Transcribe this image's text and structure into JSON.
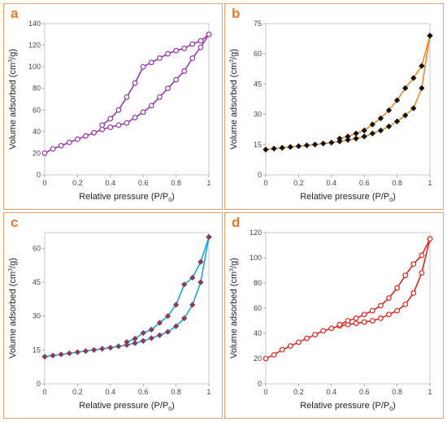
{
  "chart_data": [
    {
      "id": "a",
      "label": "a",
      "type": "line",
      "color": "#9a35b0",
      "marker": "circle",
      "marker_fill": "#ffffff",
      "xlabel": "Relative pressure (P/P0)",
      "ylabel": "Volume adsorbed (cm3/g)",
      "xlim": [
        0,
        1
      ],
      "ylim": [
        0,
        140
      ],
      "xticks": [
        "0",
        "0.2",
        "0.4",
        "0.6",
        "0.8",
        "1"
      ],
      "yticks": [
        "0",
        "20",
        "40",
        "60",
        "80",
        "100",
        "120",
        "140"
      ],
      "series": [
        {
          "x": [
            0.0,
            0.05,
            0.1,
            0.15,
            0.2,
            0.25,
            0.3,
            0.35,
            0.4,
            0.45,
            0.5,
            0.55,
            0.6,
            0.65,
            0.7,
            0.75,
            0.8,
            0.85,
            0.9,
            0.95,
            1.0
          ],
          "y": [
            20,
            24,
            27,
            30,
            33,
            36,
            39,
            42,
            44,
            46,
            48,
            53,
            58,
            64,
            72,
            80,
            88,
            96,
            108,
            118,
            130
          ]
        },
        {
          "x": [
            1.0,
            0.95,
            0.9,
            0.85,
            0.8,
            0.75,
            0.7,
            0.65,
            0.6,
            0.55,
            0.5,
            0.45,
            0.4,
            0.35
          ],
          "y": [
            130,
            124,
            121,
            117,
            115,
            112,
            108,
            104,
            100,
            85,
            72,
            60,
            52,
            46
          ]
        }
      ]
    },
    {
      "id": "b",
      "label": "b",
      "type": "line",
      "color": "#f08a24",
      "marker": "diamond",
      "marker_fill": "#111111",
      "xlabel": "Relative pressure (P/P0)",
      "ylabel": "Volume adsorbed (cm3/g)",
      "xlim": [
        0,
        1
      ],
      "ylim": [
        0,
        75
      ],
      "xticks": [
        "0",
        "0.2",
        "0.4",
        "0.6",
        "0.8",
        "1"
      ],
      "yticks": [
        "0",
        "15",
        "30",
        "45",
        "60",
        "75"
      ],
      "series": [
        {
          "x": [
            0.0,
            0.05,
            0.1,
            0.15,
            0.2,
            0.25,
            0.3,
            0.35,
            0.4,
            0.45,
            0.5,
            0.55,
            0.6,
            0.65,
            0.7,
            0.75,
            0.8,
            0.85,
            0.9,
            0.95,
            1.0
          ],
          "y": [
            12.5,
            13,
            13.4,
            13.8,
            14.2,
            14.6,
            15,
            15.5,
            16,
            16.6,
            17.3,
            18,
            19,
            20.5,
            22,
            24,
            26.5,
            29.5,
            33,
            43,
            69
          ]
        },
        {
          "x": [
            1.0,
            0.95,
            0.9,
            0.85,
            0.8,
            0.75,
            0.7,
            0.65,
            0.6,
            0.55,
            0.5,
            0.45
          ],
          "y": [
            69,
            54,
            48,
            43,
            37,
            32,
            28,
            25,
            22,
            20.5,
            19,
            18
          ]
        }
      ]
    },
    {
      "id": "c",
      "label": "c",
      "type": "line",
      "color": "#1aa8d8",
      "marker": "diamond",
      "marker_fill": "#8a3a5a",
      "xlabel": "Relative pressure (P/P0)",
      "ylabel": "Volume  adsorbed (cm3/g)",
      "xlim": [
        0,
        1
      ],
      "ylim": [
        0,
        67
      ],
      "xticks": [
        "0",
        "0.2",
        "0.4",
        "0.6",
        "0.8",
        "1"
      ],
      "yticks": [
        "0",
        "15",
        "30",
        "45",
        "60"
      ],
      "series": [
        {
          "x": [
            0.0,
            0.05,
            0.1,
            0.15,
            0.2,
            0.25,
            0.3,
            0.35,
            0.4,
            0.45,
            0.5,
            0.55,
            0.6,
            0.65,
            0.7,
            0.75,
            0.8,
            0.85,
            0.9,
            0.95,
            1.0
          ],
          "y": [
            12,
            12.5,
            13,
            13.5,
            14,
            14.5,
            15,
            15.5,
            16,
            16.6,
            17.2,
            18,
            19,
            20.2,
            21.5,
            23,
            25.5,
            29,
            35,
            45,
            65
          ]
        },
        {
          "x": [
            1.0,
            0.95,
            0.9,
            0.85,
            0.8,
            0.75,
            0.7,
            0.65,
            0.6,
            0.55,
            0.5
          ],
          "y": [
            65,
            54,
            47,
            44,
            35,
            30,
            27,
            24,
            22.5,
            20,
            18.5
          ]
        }
      ]
    },
    {
      "id": "d",
      "label": "d",
      "type": "line",
      "color": "#e0261d",
      "marker": "circle",
      "marker_fill": "#ffffff",
      "xlabel": "Relative pressure (P/P0)",
      "ylabel": "Volume adsorbed (cm3/g)",
      "xlim": [
        0,
        1
      ],
      "ylim": [
        0,
        120
      ],
      "xticks": [
        "0",
        "0.2",
        "0.4",
        "0.6",
        "0.8",
        "1"
      ],
      "yticks": [
        "0",
        "20",
        "40",
        "60",
        "80",
        "100",
        "120"
      ],
      "series": [
        {
          "x": [
            0.0,
            0.05,
            0.1,
            0.15,
            0.2,
            0.25,
            0.3,
            0.35,
            0.4,
            0.45,
            0.5,
            0.55,
            0.6,
            0.65,
            0.7,
            0.75,
            0.8,
            0.85,
            0.9,
            0.95,
            1.0
          ],
          "y": [
            20,
            23,
            27,
            30,
            33,
            36,
            39,
            42,
            44,
            46,
            47,
            48,
            49,
            50,
            52,
            55,
            58,
            63,
            72,
            88,
            115
          ]
        },
        {
          "x": [
            1.0,
            0.95,
            0.9,
            0.85,
            0.8,
            0.75,
            0.7,
            0.65,
            0.6,
            0.55,
            0.5,
            0.45
          ],
          "y": [
            115,
            102,
            95,
            86,
            76,
            68,
            62,
            58,
            55,
            52,
            50,
            47
          ]
        }
      ]
    }
  ]
}
